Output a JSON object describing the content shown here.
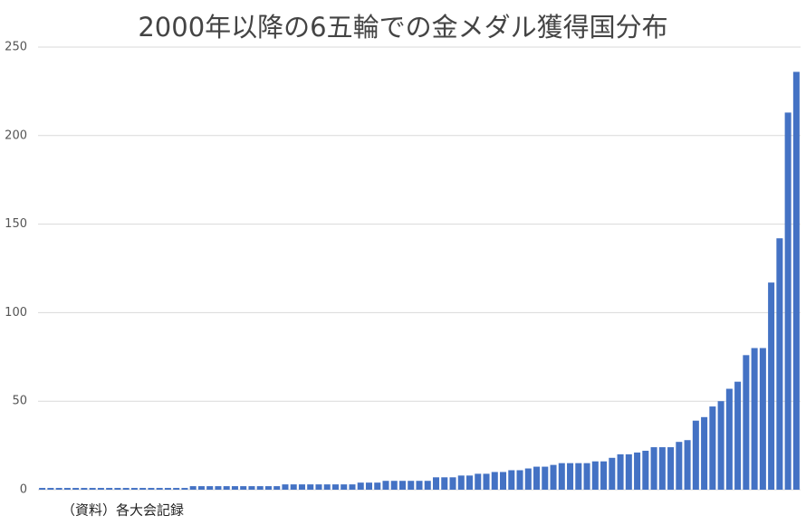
{
  "chart_data": {
    "type": "bar",
    "title": "2000年以降の6五輪での金メダル獲得国分布",
    "source": "（資料）各大会記録",
    "categories": [
      null,
      null,
      null,
      null,
      null,
      null,
      null,
      null,
      null,
      null,
      null,
      null,
      null,
      null,
      null,
      null,
      null,
      null,
      null,
      null,
      null,
      null,
      null,
      null,
      null,
      null,
      null,
      null,
      null,
      null,
      null,
      null,
      null,
      null,
      null,
      null,
      null,
      null,
      null,
      null,
      null,
      null,
      null,
      null,
      null,
      null,
      null,
      null,
      null,
      null,
      null,
      null,
      null,
      null,
      null,
      null,
      null,
      null,
      null,
      null,
      null,
      null,
      null,
      null,
      null,
      null,
      null,
      null,
      null,
      null,
      null,
      null,
      null,
      null,
      null,
      null,
      null,
      null,
      null,
      null,
      null,
      null,
      null,
      null,
      null,
      null,
      null,
      null,
      null,
      null,
      null
    ],
    "values": [
      1,
      1,
      1,
      1,
      1,
      1,
      1,
      1,
      1,
      1,
      1,
      1,
      1,
      1,
      1,
      1,
      1,
      1,
      2,
      2,
      2,
      2,
      2,
      2,
      2,
      2,
      2,
      2,
      2,
      3,
      3,
      3,
      3,
      3,
      3,
      3,
      3,
      3,
      4,
      4,
      4,
      5,
      5,
      5,
      5,
      5,
      5,
      7,
      7,
      7,
      8,
      8,
      9,
      9,
      10,
      10,
      11,
      11,
      12,
      13,
      13,
      14,
      15,
      15,
      15,
      15,
      16,
      16,
      18,
      20,
      20,
      21,
      22,
      24,
      24,
      24,
      27,
      28,
      39,
      41,
      47,
      50,
      57,
      61,
      76,
      80,
      80,
      117,
      142,
      213,
      236
    ],
    "color": "#4472c4",
    "ylim": [
      0,
      250
    ],
    "yticks": [
      0,
      50,
      100,
      150,
      200,
      250
    ],
    "grid": true
  }
}
